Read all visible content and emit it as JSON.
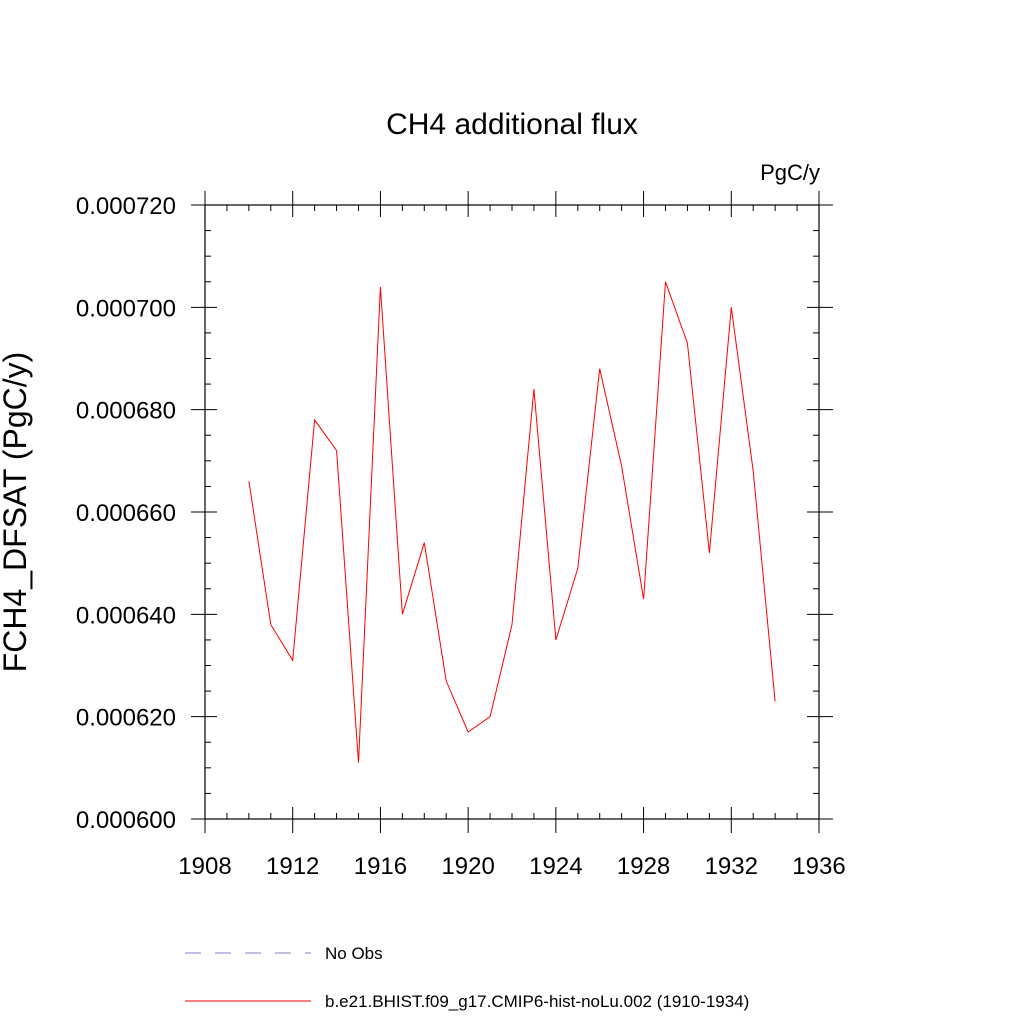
{
  "chart_data": {
    "type": "line",
    "title": "CH4 additional flux",
    "units_label": "PgC/y",
    "ylabel": "FCH4_DFSAT  (PgC/y)",
    "xlabel": "",
    "xlim": [
      1908,
      1936
    ],
    "ylim": [
      0.0006,
      0.00072
    ],
    "x_ticks": [
      1908,
      1912,
      1916,
      1920,
      1924,
      1928,
      1932,
      1936
    ],
    "x_tick_labels": [
      "1908",
      "1912",
      "1916",
      "1920",
      "1924",
      "1928",
      "1932",
      "1936"
    ],
    "y_ticks": [
      0.0006,
      0.00062,
      0.00064,
      0.00066,
      0.00068,
      0.0007,
      0.00072
    ],
    "y_tick_labels": [
      "0.000600",
      "0.000620",
      "0.000640",
      "0.000660",
      "0.000680",
      "0.000700",
      "0.000720"
    ],
    "grid": false,
    "legend_position": "bottom",
    "series": [
      {
        "name": "b.e21.BHIST.f09_g17.CMIP6-hist-noLu.002 (1910-1934)",
        "color": "#ff0000",
        "style": "solid",
        "x": [
          1910,
          1911,
          1912,
          1913,
          1914,
          1915,
          1916,
          1917,
          1918,
          1919,
          1920,
          1921,
          1922,
          1923,
          1924,
          1925,
          1926,
          1927,
          1928,
          1929,
          1930,
          1931,
          1932,
          1933,
          1934
        ],
        "y": [
          0.000666,
          0.000638,
          0.000631,
          0.000678,
          0.000672,
          0.000611,
          0.000704,
          0.00064,
          0.000654,
          0.000627,
          0.000617,
          0.00062,
          0.000638,
          0.000684,
          0.000635,
          0.000649,
          0.000688,
          0.000669,
          0.000643,
          0.000705,
          0.000693,
          0.000652,
          0.0007,
          0.000668,
          0.000623
        ]
      }
    ],
    "legend": [
      {
        "label": "No Obs",
        "color": "#8080c0",
        "style": "dashed"
      },
      {
        "label": "b.e21.BHIST.f09_g17.CMIP6-hist-noLu.002 (1910-1934)",
        "color": "#ff0000",
        "style": "solid"
      }
    ]
  }
}
